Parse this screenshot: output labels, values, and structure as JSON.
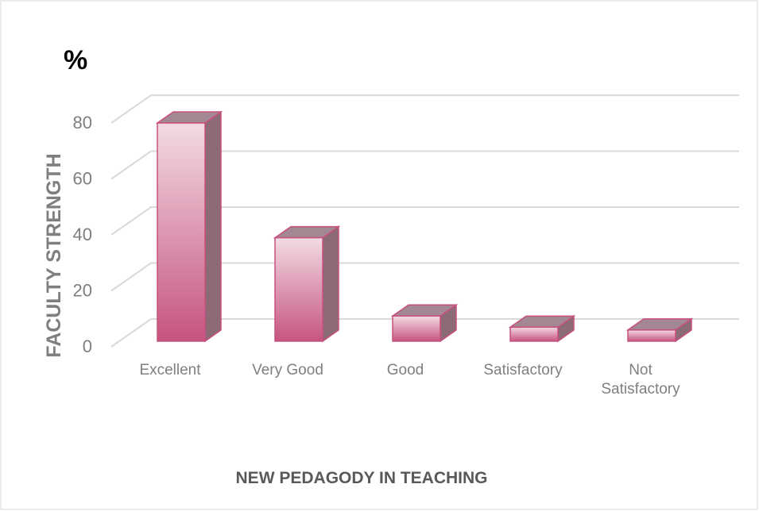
{
  "chart_data": {
    "type": "bar3d",
    "title": "%",
    "y_label": "FACULTY STRENGTH",
    "x_label": "NEW PEDAGODY IN TEACHING",
    "categories": [
      "Excellent",
      "Very Good",
      "Good",
      "Satisfactory",
      "Not Satisfactory"
    ],
    "values": [
      78,
      37,
      9,
      5,
      4
    ],
    "color": "#c8507e",
    "ylim": [
      0,
      80
    ],
    "yticks": [
      0,
      20,
      40,
      60,
      80
    ],
    "grid": true
  }
}
